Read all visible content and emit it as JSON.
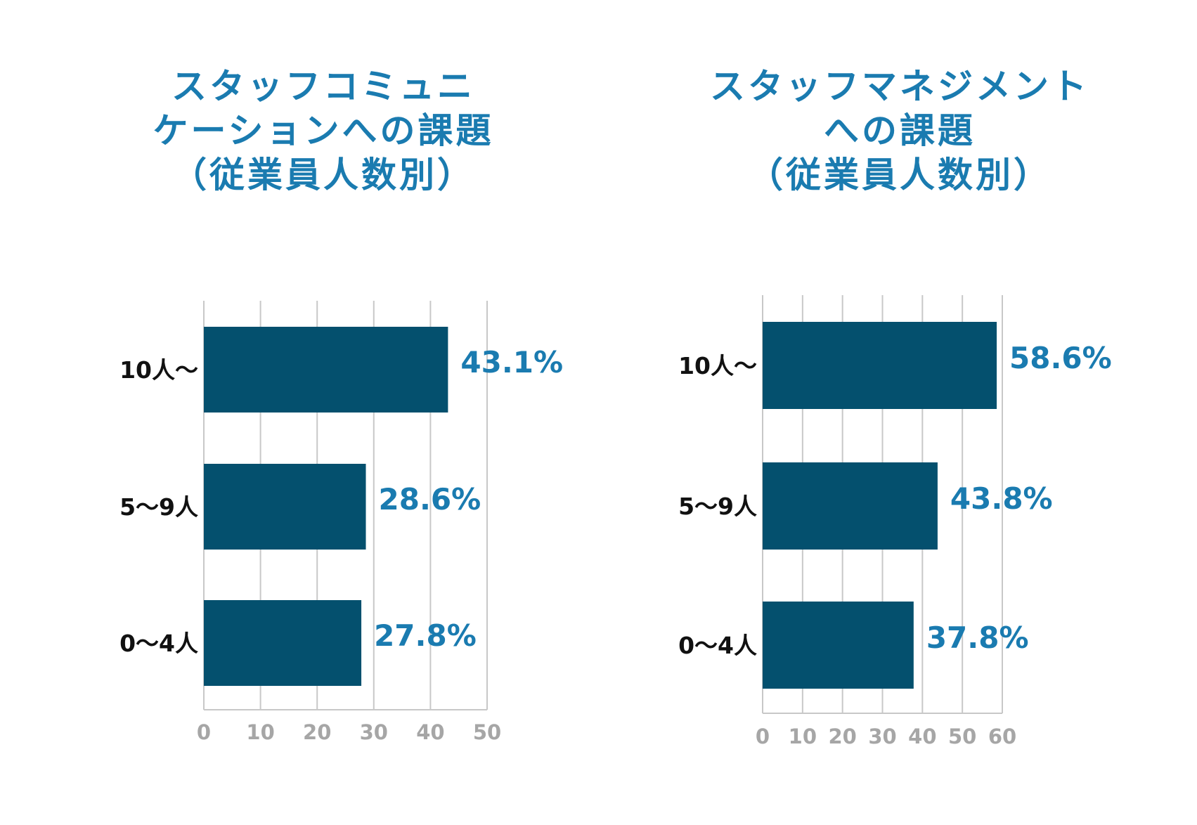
{
  "colors": {
    "title": "#1a7bb0",
    "bar": "#04506e",
    "value_label": "#1a7bb0",
    "category_label": "#111111",
    "gridline": "#c8c8c8",
    "tick_label": "#a6a6a6"
  },
  "chart_data": [
    {
      "type": "bar",
      "orientation": "horizontal",
      "title_lines": [
        "スタッフコミュニ",
        "ケーションへの課題",
        "（従業員人数別）"
      ],
      "categories": [
        "10人～",
        "5～9人",
        "0～4人"
      ],
      "values": [
        43.1,
        28.6,
        27.8
      ],
      "value_labels": [
        "43.1%",
        "28.6%",
        "27.8%"
      ],
      "xticks": [
        0,
        10,
        20,
        30,
        40,
        50
      ],
      "xlim": [
        0,
        50
      ],
      "grid": true
    },
    {
      "type": "bar",
      "orientation": "horizontal",
      "title_lines": [
        "スタッフマネジメント",
        "への課題",
        "（従業員人数別）"
      ],
      "categories": [
        "10人～",
        "5～9人",
        "0～4人"
      ],
      "values": [
        58.6,
        43.8,
        37.8
      ],
      "value_labels": [
        "58.6%",
        "43.8%",
        "37.8%"
      ],
      "xticks": [
        0,
        10,
        20,
        30,
        40,
        50,
        60
      ],
      "xlim": [
        0,
        60
      ],
      "grid": true
    }
  ]
}
